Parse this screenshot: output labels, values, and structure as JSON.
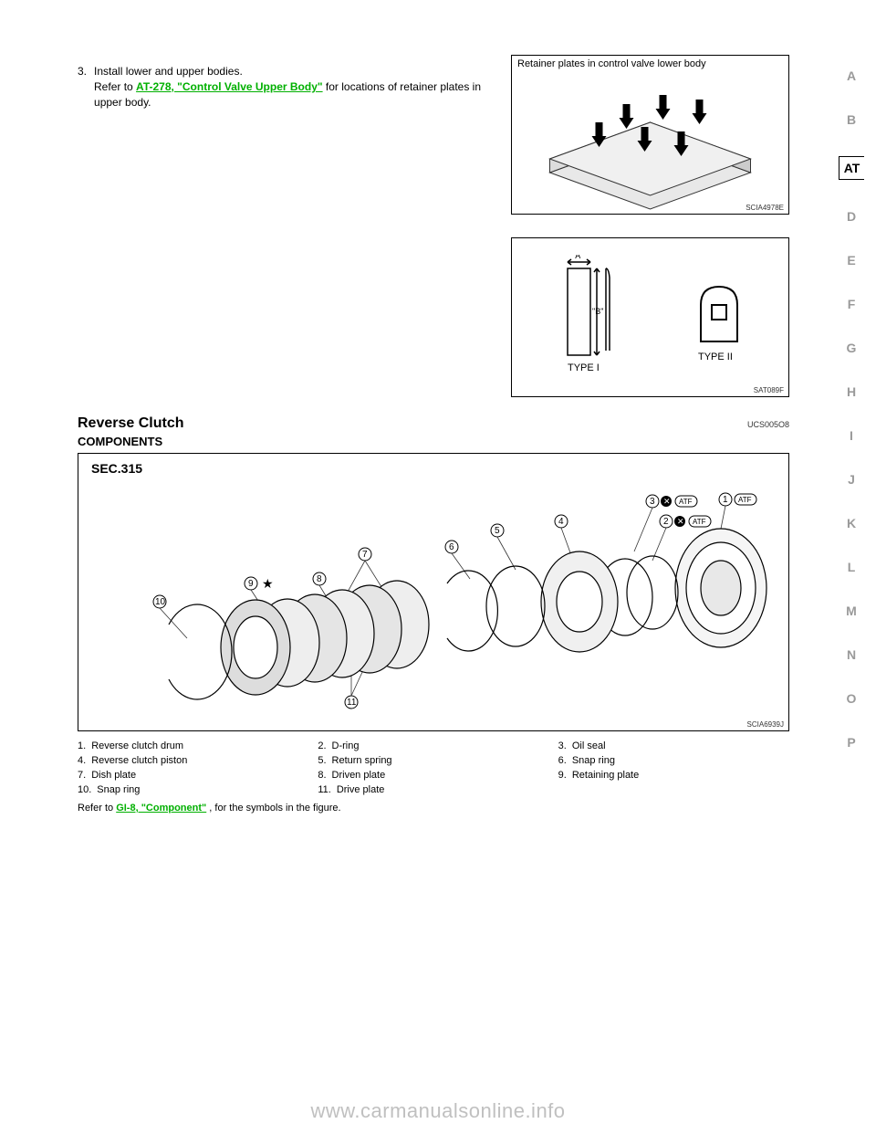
{
  "sidebar": {
    "items": [
      "A",
      "B",
      "AT",
      "D",
      "E",
      "F",
      "G",
      "H",
      "I",
      "J",
      "K",
      "L",
      "M",
      "N",
      "O",
      "P"
    ],
    "active": "AT"
  },
  "section1": {
    "step3_intro": "3.",
    "step3_text": "Install lower and upper bodies.",
    "ref_pre": "Refer to ",
    "ref_link": "AT-278, \"Control Valve Upper Body\"",
    "ref_post": " for locations of retainer plates in upper body."
  },
  "fig1": {
    "caption": "Retainer plates in control valve lower body",
    "code": "SCIA4978E"
  },
  "fig2": {
    "code": "SAT089F",
    "a_label": "\"A\"",
    "b_label": "\"B\"",
    "type1": "TYPE I",
    "type2": "TYPE II"
  },
  "reverse_clutch": {
    "title": "Reverse Clutch",
    "title_code": "UCS005O8",
    "subtitle": "COMPONENTS"
  },
  "fig3": {
    "sec": "SEC.315",
    "code": "SCIA6939J",
    "callouts": [
      "1",
      "2",
      "3",
      "4",
      "5",
      "6",
      "7",
      "8",
      "9",
      "10",
      "11"
    ],
    "star": "★",
    "atf": "ATF"
  },
  "parts": [
    {
      "num": "1.",
      "label": "Reverse clutch drum"
    },
    {
      "num": "2.",
      "label": "D-ring"
    },
    {
      "num": "3.",
      "label": "Oil seal"
    },
    {
      "num": "4.",
      "label": "Reverse clutch piston"
    },
    {
      "num": "5.",
      "label": "Return spring"
    },
    {
      "num": "6.",
      "label": "Snap ring"
    },
    {
      "num": "7.",
      "label": "Dish plate"
    },
    {
      "num": "8.",
      "label": "Driven plate"
    },
    {
      "num": "9.",
      "label": "Retaining plate"
    },
    {
      "num": "10.",
      "label": "Snap ring"
    },
    {
      "num": "11.",
      "label": "Drive plate"
    }
  ],
  "note": {
    "pre": "Refer to ",
    "link": "GI-8, \"Component\"",
    "post": " , for the symbols in the figure."
  },
  "watermark": "www.carmanualsonline.info"
}
